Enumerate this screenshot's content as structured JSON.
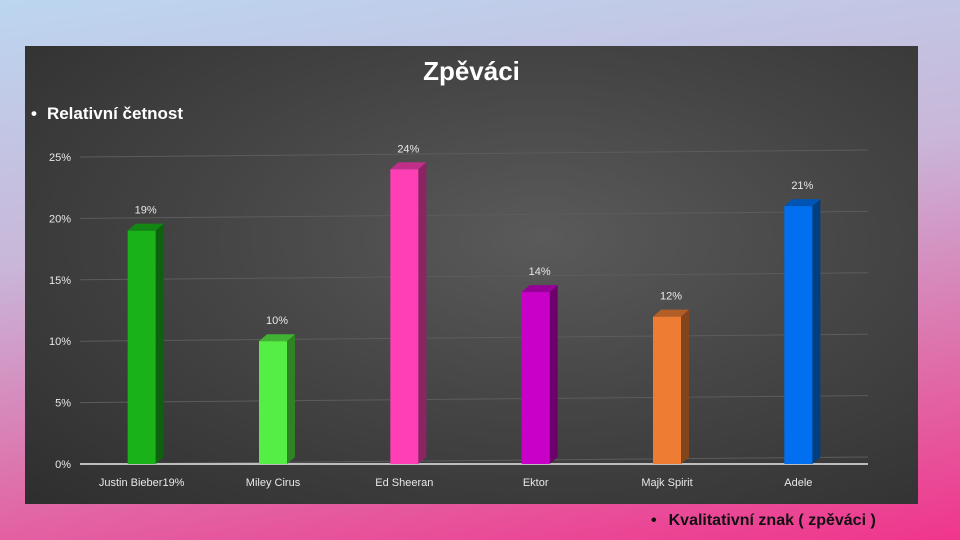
{
  "slide": {
    "title": "Zpěváci",
    "subtitle": "Relativní četnost",
    "footer": "Kvalitativní znak ( zpěváci )"
  },
  "chart_data": {
    "type": "bar",
    "categories": [
      "Justin Bieber19%",
      "Miley Cirus",
      "Ed Sheeran",
      "Ektor",
      "Majk Spirit",
      "Adele"
    ],
    "values": [
      19,
      10,
      24,
      14,
      12,
      21
    ],
    "data_labels": [
      "19%",
      "10%",
      "24%",
      "14%",
      "12%",
      "21%"
    ],
    "colors": [
      "#19b219",
      "#55ee44",
      "#ff3fb6",
      "#c800c8",
      "#ee7d33",
      "#0070f0"
    ],
    "yticks": [
      "0%",
      "5%",
      "10%",
      "15%",
      "20%",
      "25%"
    ],
    "ylim": [
      0,
      25
    ],
    "grid": true,
    "legend": false,
    "style": "3d"
  }
}
